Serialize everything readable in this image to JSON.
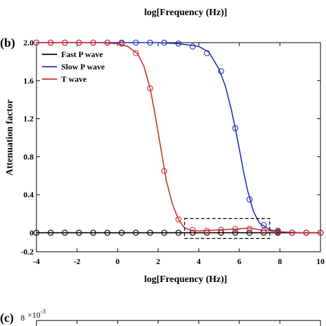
{
  "top_label": "log[Frequency (Hz)]",
  "panel_b_label": "(b)",
  "panel_c_label": "(c)",
  "panel_c_tick": "8",
  "panel_c_exponent": "×10",
  "panel_c_exponent_power": "-3",
  "colors": {
    "fast": "#000000",
    "slow": "#1f2fbf",
    "t": "#d42a2a",
    "dashed_box": "#000000"
  },
  "chart_data": {
    "type": "line",
    "xlabel": "log[Frequency (Hz)]",
    "ylabel": "Attenuation factor",
    "xlim": [
      -4,
      10
    ],
    "ylim": [
      -0.2,
      2.0
    ],
    "x_ticks": [
      -4,
      -2,
      0,
      2,
      4,
      6,
      8,
      10
    ],
    "x_tick_labels": [
      "-4",
      "-2",
      "0",
      "2",
      "4",
      "6",
      "8",
      "10"
    ],
    "y_ticks": [
      -0.2,
      0,
      0.4,
      0.8,
      1.2,
      1.6,
      2.0
    ],
    "y_tick_labels": [
      "-0.2",
      "0",
      "0.4",
      "0.8",
      "1.2",
      "1.6",
      "2.0"
    ],
    "legend_placement": "top-left",
    "series": [
      {
        "name": "Fast  P wave",
        "color": "#000000",
        "x": [
          -4,
          -2,
          0,
          2,
          4,
          6,
          8,
          10
        ],
        "y": [
          0,
          0,
          0,
          0,
          0,
          0,
          0,
          0
        ],
        "markers_x": [
          -4,
          -3.3,
          -2.6,
          -1.9,
          -1.2,
          -0.5,
          0.2,
          0.9,
          1.6,
          2.3,
          3.0,
          3.7,
          4.4,
          5.1,
          5.8,
          6.5,
          7.2,
          7.9,
          8.6,
          9.3,
          10
        ],
        "markers_y": [
          0,
          0,
          0,
          0,
          0,
          0,
          0,
          0,
          0,
          0,
          0,
          0,
          0,
          0,
          0,
          0,
          0,
          0,
          0,
          0,
          0
        ]
      },
      {
        "name": "Slow P wave",
        "color": "#1f2fbf",
        "x": [
          -4,
          -2,
          0,
          2,
          3,
          4,
          4.5,
          5,
          5.3,
          5.6,
          5.8,
          6.0,
          6.2,
          6.4,
          6.7,
          7.0,
          7.5,
          8,
          9,
          10
        ],
        "y": [
          2.0,
          2.0,
          2.0,
          2.0,
          1.99,
          1.96,
          1.9,
          1.72,
          1.55,
          1.3,
          1.1,
          0.88,
          0.65,
          0.45,
          0.22,
          0.1,
          0.03,
          0.01,
          0,
          0
        ],
        "markers_x": [
          -4,
          -3.3,
          -2.6,
          -1.9,
          -1.2,
          -0.5,
          0.2,
          0.9,
          1.6,
          2.3,
          3.0,
          3.7,
          4.4,
          5.1,
          5.8,
          6.5,
          7.2,
          7.9,
          8.6,
          9.3,
          10
        ],
        "markers_y": [
          2.0,
          2.0,
          2.0,
          2.0,
          2.0,
          2.0,
          2.0,
          2.0,
          2.0,
          2.0,
          1.99,
          1.96,
          1.89,
          1.7,
          1.1,
          0.35,
          0.08,
          0.02,
          0,
          0,
          0
        ]
      },
      {
        "name": "T wave",
        "color": "#d42a2a",
        "x": [
          -4,
          -2,
          -1,
          0,
          0.5,
          1.0,
          1.3,
          1.6,
          1.8,
          2.0,
          2.2,
          2.4,
          2.7,
          3.0,
          3.3,
          3.7,
          4.2,
          5,
          6,
          6.5,
          7,
          8,
          9,
          10
        ],
        "y": [
          2.0,
          2.0,
          2.0,
          1.99,
          1.96,
          1.88,
          1.75,
          1.52,
          1.3,
          1.05,
          0.8,
          0.55,
          0.3,
          0.14,
          0.05,
          0.02,
          0.02,
          0.03,
          0.04,
          0.05,
          0.03,
          0.01,
          0,
          0
        ],
        "markers_x": [
          -4,
          -3.3,
          -2.6,
          -1.9,
          -1.2,
          -0.5,
          0.2,
          0.9,
          1.6,
          2.3,
          3.0,
          3.7,
          4.4,
          5.1,
          5.8,
          6.5,
          7.2,
          7.9,
          8.6,
          9.3,
          10
        ],
        "markers_y": [
          2.0,
          2.0,
          2.0,
          2.0,
          2.0,
          2.0,
          1.99,
          1.89,
          1.52,
          0.65,
          0.14,
          0.03,
          0.02,
          0.03,
          0.04,
          0.04,
          0.02,
          0.01,
          0,
          0,
          0
        ]
      }
    ],
    "annotation_box": {
      "x": [
        3.3,
        7.5
      ],
      "y": [
        -0.06,
        0.15
      ],
      "style": "dashed"
    }
  }
}
